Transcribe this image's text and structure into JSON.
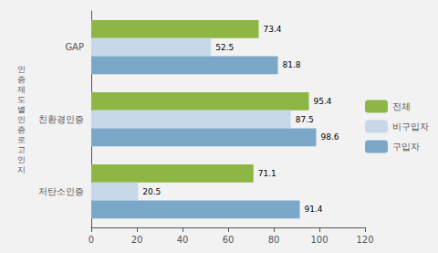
{
  "chart_data": {
    "type": "bar",
    "orientation": "horizontal",
    "categories": [
      "GAP",
      "친환경인증",
      "저탄소인증"
    ],
    "series": [
      {
        "name": "전체",
        "color": "#8DB645",
        "values": [
          73.4,
          95.4,
          71.1
        ]
      },
      {
        "name": "비구입자",
        "color": "#C8D8E8",
        "values": [
          52.5,
          87.5,
          20.5
        ]
      },
      {
        "name": "구입자",
        "color": "#7BA7C8",
        "values": [
          81.8,
          98.6,
          91.4
        ]
      }
    ],
    "ylabel": "인증제도별인증로고인지",
    "xlim": [
      0,
      120
    ],
    "xticks": [
      0,
      20,
      40,
      60,
      80,
      100,
      120
    ],
    "data_labels": true,
    "grid": false,
    "legend": "right",
    "background_color": "#F2F2F2"
  }
}
